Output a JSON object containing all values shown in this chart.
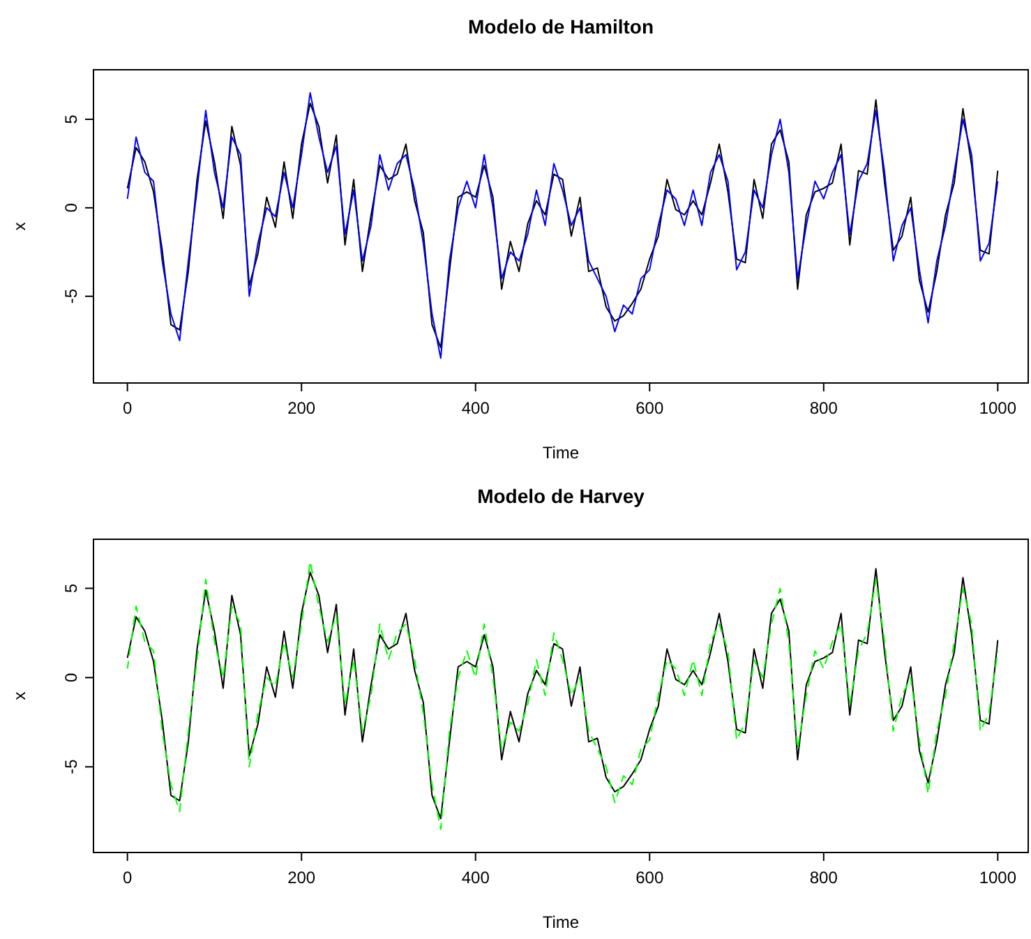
{
  "chart_data": [
    {
      "type": "line",
      "title": "Modelo de Hamilton",
      "xlabel": "Time",
      "ylabel": "x",
      "xlim": [
        -39,
        1035
      ],
      "ylim": [
        -9.9,
        7.8
      ],
      "xticks": [
        0,
        200,
        400,
        600,
        800,
        1000
      ],
      "yticks": [
        -5,
        0,
        5
      ],
      "grid": false,
      "x": [
        0,
        10,
        20,
        30,
        40,
        50,
        60,
        70,
        80,
        90,
        100,
        110,
        120,
        130,
        140,
        150,
        160,
        170,
        180,
        190,
        200,
        210,
        220,
        230,
        240,
        250,
        260,
        270,
        280,
        290,
        300,
        310,
        320,
        330,
        340,
        350,
        360,
        370,
        380,
        390,
        400,
        410,
        420,
        430,
        440,
        450,
        460,
        470,
        480,
        490,
        500,
        510,
        520,
        530,
        540,
        550,
        560,
        570,
        580,
        590,
        600,
        610,
        620,
        630,
        640,
        650,
        660,
        670,
        680,
        690,
        700,
        710,
        720,
        730,
        740,
        750,
        760,
        770,
        780,
        790,
        800,
        810,
        820,
        830,
        840,
        850,
        860,
        870,
        880,
        890,
        900,
        910,
        920,
        930,
        940,
        950,
        960,
        970,
        980,
        990,
        1000
      ],
      "series": [
        {
          "color": "#000000",
          "values": [
            1.1,
            3.4,
            2.6,
            0.9,
            -2.4,
            -6.6,
            -6.9,
            -3.6,
            1.6,
            4.9,
            2.6,
            -0.6,
            4.6,
            2.4,
            -4.4,
            -2.6,
            0.6,
            -1.1,
            2.6,
            -0.6,
            3.6,
            5.9,
            4.6,
            1.4,
            4.1,
            -2.1,
            1.6,
            -3.6,
            -0.4,
            2.4,
            1.6,
            1.9,
            3.6,
            0.4,
            -1.4,
            -6.6,
            -7.9,
            -3.6,
            0.6,
            0.9,
            0.6,
            2.4,
            0.6,
            -4.6,
            -1.9,
            -3.6,
            -0.9,
            0.4,
            -0.4,
            1.9,
            1.6,
            -1.6,
            0.6,
            -3.6,
            -3.4,
            -5.6,
            -6.4,
            -6.1,
            -5.4,
            -4.6,
            -2.9,
            -1.6,
            1.6,
            -0.1,
            -0.4,
            0.4,
            -0.4,
            1.4,
            3.6,
            0.9,
            -2.9,
            -3.1,
            1.6,
            -0.6,
            3.6,
            4.4,
            2.6,
            -4.6,
            -0.4,
            0.9,
            1.1,
            1.4,
            3.6,
            -2.1,
            2.1,
            1.9,
            6.1,
            1.4,
            -2.4,
            -1.6,
            0.6,
            -4.1,
            -5.9,
            -3.6,
            -0.4,
            1.4,
            5.6,
            2.4,
            -2.4,
            -2.6,
            2.1
          ]
        },
        {
          "color": "#0000ff",
          "values": [
            0.5,
            4,
            2,
            1.5,
            -3,
            -6,
            -7.5,
            -3,
            1,
            5.5,
            2,
            0,
            4,
            3,
            -5,
            -2,
            0,
            -0.5,
            2,
            0,
            3,
            6.5,
            4,
            2,
            3.5,
            -1.5,
            1,
            -3,
            -1,
            3,
            1,
            2.5,
            3,
            1,
            -2,
            -6,
            -8.5,
            -3,
            0,
            1.5,
            0,
            3,
            0,
            -4,
            -2.5,
            -3,
            -1.5,
            1,
            -1,
            2.5,
            1,
            -1,
            0,
            -3,
            -4,
            -5,
            -7,
            -5.5,
            -6,
            -4,
            -3.5,
            -1,
            1,
            0.5,
            -1,
            1,
            -1,
            2,
            3,
            1.5,
            -3.5,
            -2.5,
            1,
            0,
            3,
            5,
            2,
            -4,
            -1,
            1.5,
            0.5,
            2,
            3,
            -1.5,
            1.5,
            2.5,
            5.5,
            2,
            -3,
            -1,
            0,
            -3.5,
            -6.5,
            -3,
            -1,
            2,
            5,
            3,
            -3,
            -2,
            1.5
          ]
        }
      ]
    },
    {
      "type": "line",
      "title": "Modelo de Harvey",
      "xlabel": "Time",
      "ylabel": "x",
      "xlim": [
        -39,
        1035
      ],
      "ylim": [
        -9.8,
        7.75
      ],
      "xticks": [
        0,
        200,
        400,
        600,
        800,
        1000
      ],
      "yticks": [
        -5,
        0,
        5
      ],
      "grid": false,
      "x": [
        0,
        10,
        20,
        30,
        40,
        50,
        60,
        70,
        80,
        90,
        100,
        110,
        120,
        130,
        140,
        150,
        160,
        170,
        180,
        190,
        200,
        210,
        220,
        230,
        240,
        250,
        260,
        270,
        280,
        290,
        300,
        310,
        320,
        330,
        340,
        350,
        360,
        370,
        380,
        390,
        400,
        410,
        420,
        430,
        440,
        450,
        460,
        470,
        480,
        490,
        500,
        510,
        520,
        530,
        540,
        550,
        560,
        570,
        580,
        590,
        600,
        610,
        620,
        630,
        640,
        650,
        660,
        670,
        680,
        690,
        700,
        710,
        720,
        730,
        740,
        750,
        760,
        770,
        780,
        790,
        800,
        810,
        820,
        830,
        840,
        850,
        860,
        870,
        880,
        890,
        900,
        910,
        920,
        930,
        940,
        950,
        960,
        970,
        980,
        990,
        1000
      ],
      "series": [
        {
          "color": "#000000",
          "values": [
            1.1,
            3.4,
            2.6,
            0.9,
            -2.4,
            -6.6,
            -6.9,
            -3.6,
            1.6,
            4.9,
            2.6,
            -0.6,
            4.6,
            2.4,
            -4.4,
            -2.6,
            0.6,
            -1.1,
            2.6,
            -0.6,
            3.6,
            5.9,
            4.6,
            1.4,
            4.1,
            -2.1,
            1.6,
            -3.6,
            -0.4,
            2.4,
            1.6,
            1.9,
            3.6,
            0.4,
            -1.4,
            -6.6,
            -7.9,
            -3.6,
            0.6,
            0.9,
            0.6,
            2.4,
            0.6,
            -4.6,
            -1.9,
            -3.6,
            -0.9,
            0.4,
            -0.4,
            1.9,
            1.6,
            -1.6,
            0.6,
            -3.6,
            -3.4,
            -5.6,
            -6.4,
            -6.1,
            -5.4,
            -4.6,
            -2.9,
            -1.6,
            1.6,
            -0.1,
            -0.4,
            0.4,
            -0.4,
            1.4,
            3.6,
            0.9,
            -2.9,
            -3.1,
            1.6,
            -0.6,
            3.6,
            4.4,
            2.6,
            -4.6,
            -0.4,
            0.9,
            1.1,
            1.4,
            3.6,
            -2.1,
            2.1,
            1.9,
            6.1,
            1.4,
            -2.4,
            -1.6,
            0.6,
            -4.1,
            -5.9,
            -3.6,
            -0.4,
            1.4,
            5.6,
            2.4,
            -2.4,
            -2.6,
            2.1
          ]
        },
        {
          "color": "#00ff00",
          "line_style": "dashed",
          "values": [
            0.5,
            4,
            2,
            1.5,
            -3,
            -6,
            -7.5,
            -3,
            1,
            5.5,
            2,
            0,
            4,
            3,
            -5,
            -2,
            0,
            -0.5,
            2,
            0,
            3,
            6.5,
            4,
            2,
            3.5,
            -1.5,
            1,
            -3,
            -1,
            3,
            1,
            2.5,
            3,
            1,
            -2,
            -6,
            -8.5,
            -3,
            0,
            1.5,
            0,
            3,
            0,
            -4,
            -2.5,
            -3,
            -1.5,
            1,
            -1,
            2.5,
            1,
            -1,
            0,
            -3,
            -4,
            -5,
            -7,
            -5.5,
            -6,
            -4,
            -3.5,
            -1,
            1,
            0.5,
            -1,
            1,
            -1,
            2,
            3,
            1.5,
            -3.5,
            -2.5,
            1,
            0,
            3,
            5,
            2,
            -4,
            -1,
            1.5,
            0.5,
            2,
            3,
            -1.5,
            1.5,
            2.5,
            5.5,
            2,
            -3,
            -1,
            0,
            -3.5,
            -6.5,
            -3,
            -1,
            2,
            5,
            3,
            -3,
            -2,
            1.5
          ]
        }
      ]
    }
  ]
}
